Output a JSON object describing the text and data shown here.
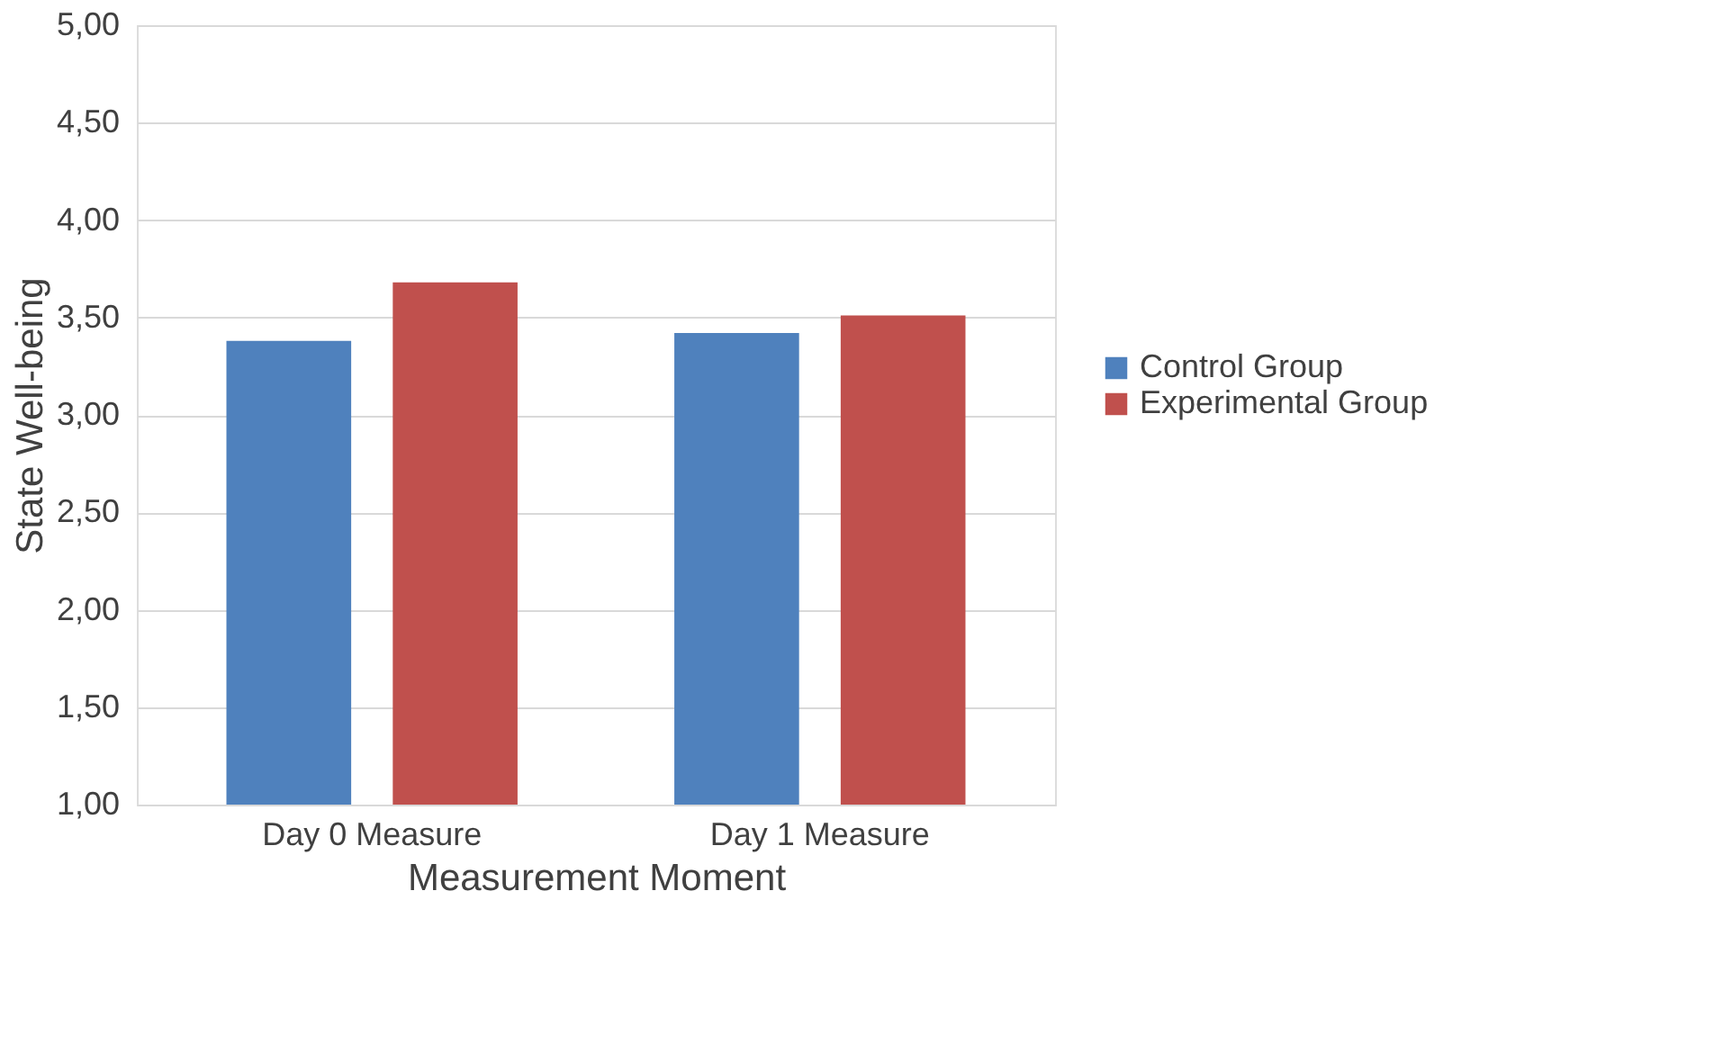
{
  "chart_data": {
    "type": "bar",
    "xlabel": "Measurement Moment",
    "ylabel": "State Well-being",
    "categories": [
      "Day 0 Measure",
      "Day 1 Measure"
    ],
    "series": [
      {
        "name": "Control Group",
        "color": "#4f81bd",
        "values": [
          3.38,
          3.42
        ]
      },
      {
        "name": "Experimental Group",
        "color": "#c0504d",
        "values": [
          3.68,
          3.51
        ]
      }
    ],
    "ylim": [
      1,
      5
    ],
    "yticks": [
      {
        "value": 1,
        "label": "1,00"
      },
      {
        "value": 1.5,
        "label": "1,50"
      },
      {
        "value": 2,
        "label": "2,00"
      },
      {
        "value": 2.5,
        "label": "2,50"
      },
      {
        "value": 3,
        "label": "3,00"
      },
      {
        "value": 3.5,
        "label": "3,50"
      },
      {
        "value": 4,
        "label": "4,00"
      },
      {
        "value": 4.5,
        "label": "4,50"
      },
      {
        "value": 5,
        "label": "5,00"
      }
    ],
    "grid": "y",
    "legend": "right"
  }
}
